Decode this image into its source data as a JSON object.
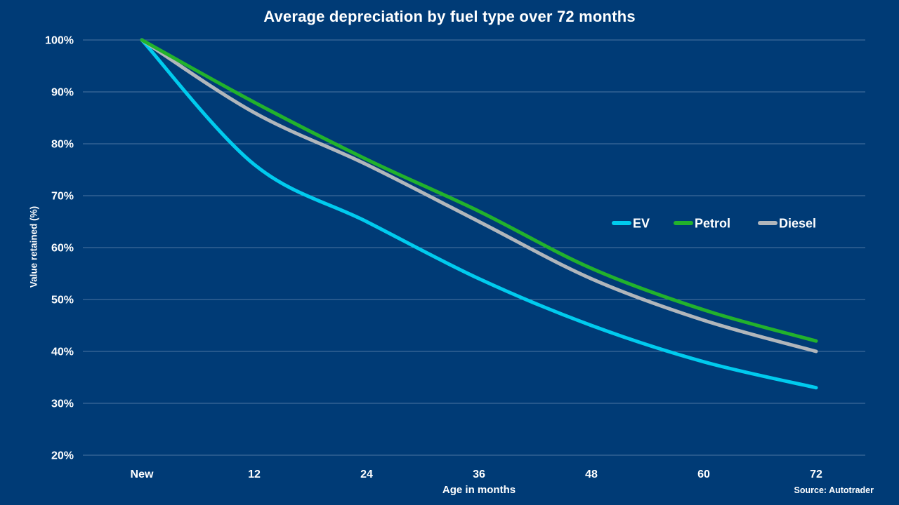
{
  "chart_data": {
    "type": "line",
    "title": "Average depreciation by fuel type over 72 months",
    "xlabel": "Age in months",
    "ylabel": "Value retained (%)",
    "source": "Source: Autotrader",
    "x_tick_labels": [
      "New",
      "12",
      "24",
      "36",
      "48",
      "60",
      "72"
    ],
    "x_values_months": [
      0,
      12,
      24,
      36,
      48,
      60,
      72
    ],
    "y_tick_labels": [
      "100%",
      "90%",
      "80%",
      "70%",
      "60%",
      "50%",
      "40%",
      "30%",
      "20%"
    ],
    "y_tick_values": [
      100,
      90,
      80,
      70,
      60,
      50,
      40,
      30,
      20
    ],
    "ylim": [
      20,
      100
    ],
    "grid": true,
    "legend_position": "center-right",
    "series": [
      {
        "name": "EV",
        "color": "#00CBEE",
        "values": [
          100,
          76,
          65,
          54,
          45,
          38,
          33
        ]
      },
      {
        "name": "Petrol",
        "color": "#22B22C",
        "values": [
          100,
          88,
          77,
          67,
          56,
          48,
          42
        ]
      },
      {
        "name": "Diesel",
        "color": "#B1B6BB",
        "values": [
          100,
          86,
          76,
          65,
          54,
          46,
          40
        ]
      }
    ],
    "colors": {
      "background": "#003B76",
      "gridline": "#8BA3C6",
      "text": "#FFFFFF"
    }
  }
}
